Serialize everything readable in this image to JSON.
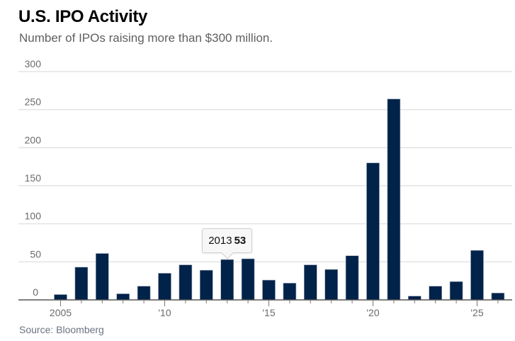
{
  "chart_data": {
    "type": "bar",
    "title": "U.S. IPO Activity",
    "subtitle": "Number of IPOs raising more than $300 million.",
    "source": "Source: Bloomberg",
    "xlabel": "",
    "ylabel": "",
    "categories": [
      "2005",
      "2006",
      "2007",
      "2008",
      "2009",
      "2010",
      "2011",
      "2012",
      "2013",
      "2014",
      "2015",
      "2016",
      "2017",
      "2018",
      "2019",
      "2020",
      "2021",
      "2022",
      "2023",
      "2024",
      "2025",
      "2026"
    ],
    "values": [
      7,
      43,
      61,
      8,
      18,
      35,
      46,
      39,
      53,
      54,
      26,
      22,
      46,
      40,
      58,
      180,
      264,
      5,
      18,
      24,
      65,
      9
    ],
    "ylim": [
      0,
      300
    ],
    "yticks": [
      0,
      50,
      100,
      150,
      200,
      250,
      300
    ],
    "ytick_labels": [
      "0",
      "50",
      "100",
      "150",
      "200",
      "250",
      "300"
    ],
    "xticks": [
      {
        "year": "2005",
        "label": "2005"
      },
      {
        "year": "2010",
        "label": "'10"
      },
      {
        "year": "2015",
        "label": "'15"
      },
      {
        "year": "2020",
        "label": "'20"
      },
      {
        "year": "2025",
        "label": "'25"
      }
    ],
    "grid": true,
    "bar_color": "#012249",
    "tooltip": {
      "category": "2013",
      "year_label": "2013",
      "value_label": "53"
    }
  }
}
